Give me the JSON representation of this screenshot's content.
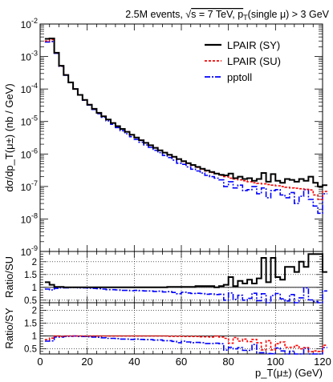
{
  "header": {
    "title_prefix": "2.5M events, ",
    "sqrt_symbol": "√",
    "title_energy": "s = 7 TeV, p",
    "title_sub": "T",
    "title_suffix": "(single μ) > 3 GeV"
  },
  "chart_data": [
    {
      "type": "line",
      "panel": "main",
      "ylabel": "dσ/dp_T(μ±) (nb / GeV)",
      "yscale": "log",
      "ylim": [
        1e-09,
        0.01
      ],
      "xlim": [
        0,
        120
      ],
      "y_tick_labels": [
        "10",
        "10",
        "10",
        "10",
        "10",
        "10",
        "10",
        "10"
      ],
      "y_tick_exponents": [
        "-9",
        "-8",
        "-7",
        "-6",
        "-5",
        "-4",
        "-3",
        "-2"
      ],
      "y_tick_values": [
        1e-09,
        1e-08,
        1e-07,
        1e-06,
        1e-05,
        0.0001,
        0.001,
        0.01
      ],
      "legend_position": "top-right",
      "bin_width": 2,
      "x_edges_start": 2,
      "series": [
        {
          "name": "LPAIR (SY)",
          "color": "#000000",
          "style": "solid",
          "values": [
            0.0035,
            0.0036,
            0.0013,
            0.00052,
            0.00027,
            0.00016,
            0.0001,
            6.6e-05,
            4.6e-05,
            3.3e-05,
            2.45e-05,
            1.85e-05,
            1.45e-05,
            1.15e-05,
            9e-06,
            7.2e-06,
            5.9e-06,
            4.8e-06,
            3.9e-06,
            3.2e-06,
            2.65e-06,
            2.2e-06,
            1.85e-06,
            1.55e-06,
            1.3e-06,
            1.1e-06,
            9.5e-07,
            8.2e-07,
            7e-07,
            6e-07,
            5.2e-07,
            4.6e-07,
            4e-07,
            3.5e-07,
            3.1e-07,
            2.8e-07,
            2.5e-07,
            2.3e-07,
            2.2e-07,
            2.5e-07,
            1.8e-07,
            2e-07,
            1.7e-07,
            1.8e-07,
            1.5e-07,
            1.7e-07,
            2.6e-07,
            1.4e-07,
            2.4e-07,
            1.5e-07,
            1.3e-07,
            1.7e-07,
            1.6e-07,
            1.4e-07,
            1.7e-07,
            1.5e-07,
            2e-07,
            1.3e-07,
            1e-07,
            1.1e-07
          ]
        },
        {
          "name": "LPAIR (SU)",
          "color": "#ff0000",
          "style": "dotted",
          "values": [
            0.003,
            0.0033,
            0.0013,
            0.00051,
            0.00027,
            0.00016,
            0.0001,
            6.6e-05,
            4.6e-05,
            3.3e-05,
            2.45e-05,
            1.85e-05,
            1.45e-05,
            1.15e-05,
            9e-06,
            7.2e-06,
            5.9e-06,
            4.8e-06,
            3.9e-06,
            3.2e-06,
            2.65e-06,
            2.2e-06,
            1.85e-06,
            1.55e-06,
            1.3e-06,
            1.1e-06,
            9.4e-07,
            8.1e-07,
            6.9e-07,
            5.9e-07,
            5.1e-07,
            4.5e-07,
            3.9e-07,
            3.4e-07,
            3e-07,
            2.7e-07,
            2.5e-07,
            2.2e-07,
            2e-07,
            1.8e-07,
            1.7e-07,
            1.6e-07,
            1.5e-07,
            1.4e-07,
            1.3e-07,
            1.25e-07,
            1.2e-07,
            1.15e-07,
            1.1e-07,
            1.05e-07,
            1e-07,
            9.5e-08,
            9e-08,
            8.8e-08,
            8.5e-08,
            8.2e-08,
            7.8e-08,
            5.5e-08,
            4e-08,
            7e-08
          ]
        },
        {
          "name": "pptoll",
          "color": "#0000ff",
          "style": "dashdot",
          "values": [
            0.0028,
            0.0029,
            0.00125,
            0.0005,
            0.000265,
            0.000158,
            0.0001,
            6.5e-05,
            4.5e-05,
            3.2e-05,
            2.35e-05,
            1.75e-05,
            1.35e-05,
            1.05e-05,
            8.2e-06,
            6.5e-06,
            5.2e-06,
            4.2e-06,
            3.4e-06,
            2.8e-06,
            2.3e-06,
            1.9e-06,
            1.6e-06,
            1.3e-06,
            1.1e-06,
            9e-07,
            7.8e-07,
            6.5e-07,
            5.2e-07,
            4.8e-07,
            4e-07,
            3.4e-07,
            3e-07,
            2.6e-07,
            2.2e-07,
            2e-07,
            1.8e-07,
            1.6e-07,
            1e-07,
            1.4e-07,
            9e-08,
            1.1e-07,
            7.5e-08,
            8e-08,
            1e-07,
            6e-08,
            9e-08,
            4.5e-08,
            7.5e-08,
            8e-08,
            5.5e-08,
            4.5e-08,
            6.5e-08,
            3e-08,
            5e-08,
            8e-08,
            4e-08,
            2.5e-08,
            1.5e-08,
            6e-08
          ]
        }
      ]
    },
    {
      "type": "line",
      "panel": "ratio_su",
      "ylabel": "Ratio/SU",
      "ylim": [
        0.4,
        2.4
      ],
      "y_tick_labels": [
        "0.5",
        "1",
        "1.5",
        "2"
      ],
      "y_tick_values": [
        0.5,
        1,
        1.5,
        2
      ],
      "reference_line": 1,
      "series": [
        {
          "name": "LPAIR (SY)",
          "color": "#000000",
          "style": "solid",
          "values": [
            1.2,
            1.1,
            1.02,
            1.02,
            1.0,
            1.0,
            1.0,
            1.0,
            1.0,
            1.0,
            1.0,
            1.0,
            1.0,
            1.0,
            1.0,
            1.0,
            1.0,
            1.0,
            1.0,
            1.0,
            1.0,
            1.0,
            1.0,
            1.0,
            1.0,
            1.0,
            1.02,
            1.02,
            1.02,
            1.02,
            1.02,
            1.02,
            1.05,
            1.05,
            1.05,
            1.05,
            1.0,
            1.05,
            1.1,
            1.4,
            1.05,
            1.25,
            1.15,
            1.3,
            1.15,
            1.35,
            2.15,
            1.2,
            2.15,
            1.4,
            1.3,
            1.8,
            1.8,
            1.6,
            2.0,
            1.8,
            2.3,
            2.3,
            2.3,
            1.6
          ]
        },
        {
          "name": "pptoll",
          "color": "#0000ff",
          "style": "dashdot",
          "values": [
            0.93,
            0.9,
            0.96,
            0.98,
            0.98,
            0.99,
            1.0,
            0.98,
            0.98,
            0.97,
            0.96,
            0.95,
            0.93,
            0.91,
            0.91,
            0.9,
            0.88,
            0.88,
            0.87,
            0.88,
            0.87,
            0.86,
            0.86,
            0.84,
            0.85,
            0.82,
            0.83,
            0.8,
            0.75,
            0.81,
            0.78,
            0.76,
            0.77,
            0.76,
            0.73,
            0.74,
            0.72,
            0.73,
            0.5,
            0.78,
            0.53,
            0.69,
            0.5,
            0.57,
            0.77,
            0.48,
            0.75,
            0.39,
            0.68,
            0.76,
            0.55,
            0.47,
            0.72,
            0.34,
            0.59,
            0.98,
            0.51,
            0.45,
            0.38,
            0.86
          ]
        }
      ]
    },
    {
      "type": "line",
      "panel": "ratio_sy",
      "ylabel": "Ratio/SY",
      "xlabel": "p_T(μ±) (GeV)",
      "ylim": [
        0.3,
        2.3
      ],
      "y_tick_labels": [
        "0.5",
        "1",
        "1.5",
        "2"
      ],
      "y_tick_values": [
        0.5,
        1,
        1.5,
        2
      ],
      "x_tick_labels": [
        "0",
        "20",
        "40",
        "60",
        "80",
        "100",
        "120"
      ],
      "x_tick_values": [
        0,
        20,
        40,
        60,
        80,
        100,
        120
      ],
      "reference_line": 1,
      "series": [
        {
          "name": "LPAIR (SU)",
          "color": "#ff0000",
          "style": "dotted",
          "values": [
            0.86,
            0.92,
            1.0,
            0.98,
            1.0,
            1.0,
            1.0,
            1.0,
            1.0,
            1.0,
            1.0,
            1.0,
            1.0,
            1.0,
            1.0,
            1.0,
            1.0,
            1.0,
            1.0,
            1.0,
            1.0,
            1.0,
            1.0,
            1.0,
            1.0,
            1.0,
            0.99,
            0.99,
            0.99,
            0.98,
            0.98,
            0.98,
            0.98,
            0.97,
            0.97,
            0.96,
            1.0,
            0.96,
            0.91,
            0.72,
            0.94,
            0.8,
            0.88,
            0.78,
            0.87,
            0.74,
            0.46,
            0.82,
            0.46,
            0.7,
            0.77,
            0.56,
            0.56,
            0.63,
            0.5,
            0.55,
            0.39,
            0.42,
            0.4,
            0.64
          ]
        },
        {
          "name": "pptoll",
          "color": "#0000ff",
          "style": "dashdot",
          "values": [
            0.8,
            0.81,
            0.96,
            0.96,
            0.98,
            0.99,
            1.0,
            0.98,
            0.98,
            0.97,
            0.96,
            0.95,
            0.93,
            0.91,
            0.91,
            0.9,
            0.88,
            0.88,
            0.87,
            0.88,
            0.87,
            0.86,
            0.86,
            0.84,
            0.85,
            0.82,
            0.82,
            0.79,
            0.74,
            0.8,
            0.77,
            0.74,
            0.75,
            0.74,
            0.71,
            0.71,
            0.72,
            0.7,
            0.45,
            0.56,
            0.5,
            0.55,
            0.44,
            0.44,
            0.67,
            0.35,
            0.35,
            0.32,
            0.31,
            0.53,
            0.42,
            0.26,
            0.41,
            0.21,
            0.29,
            0.53,
            0.2,
            0.19,
            0.15,
            0.55
          ]
        }
      ]
    }
  ]
}
